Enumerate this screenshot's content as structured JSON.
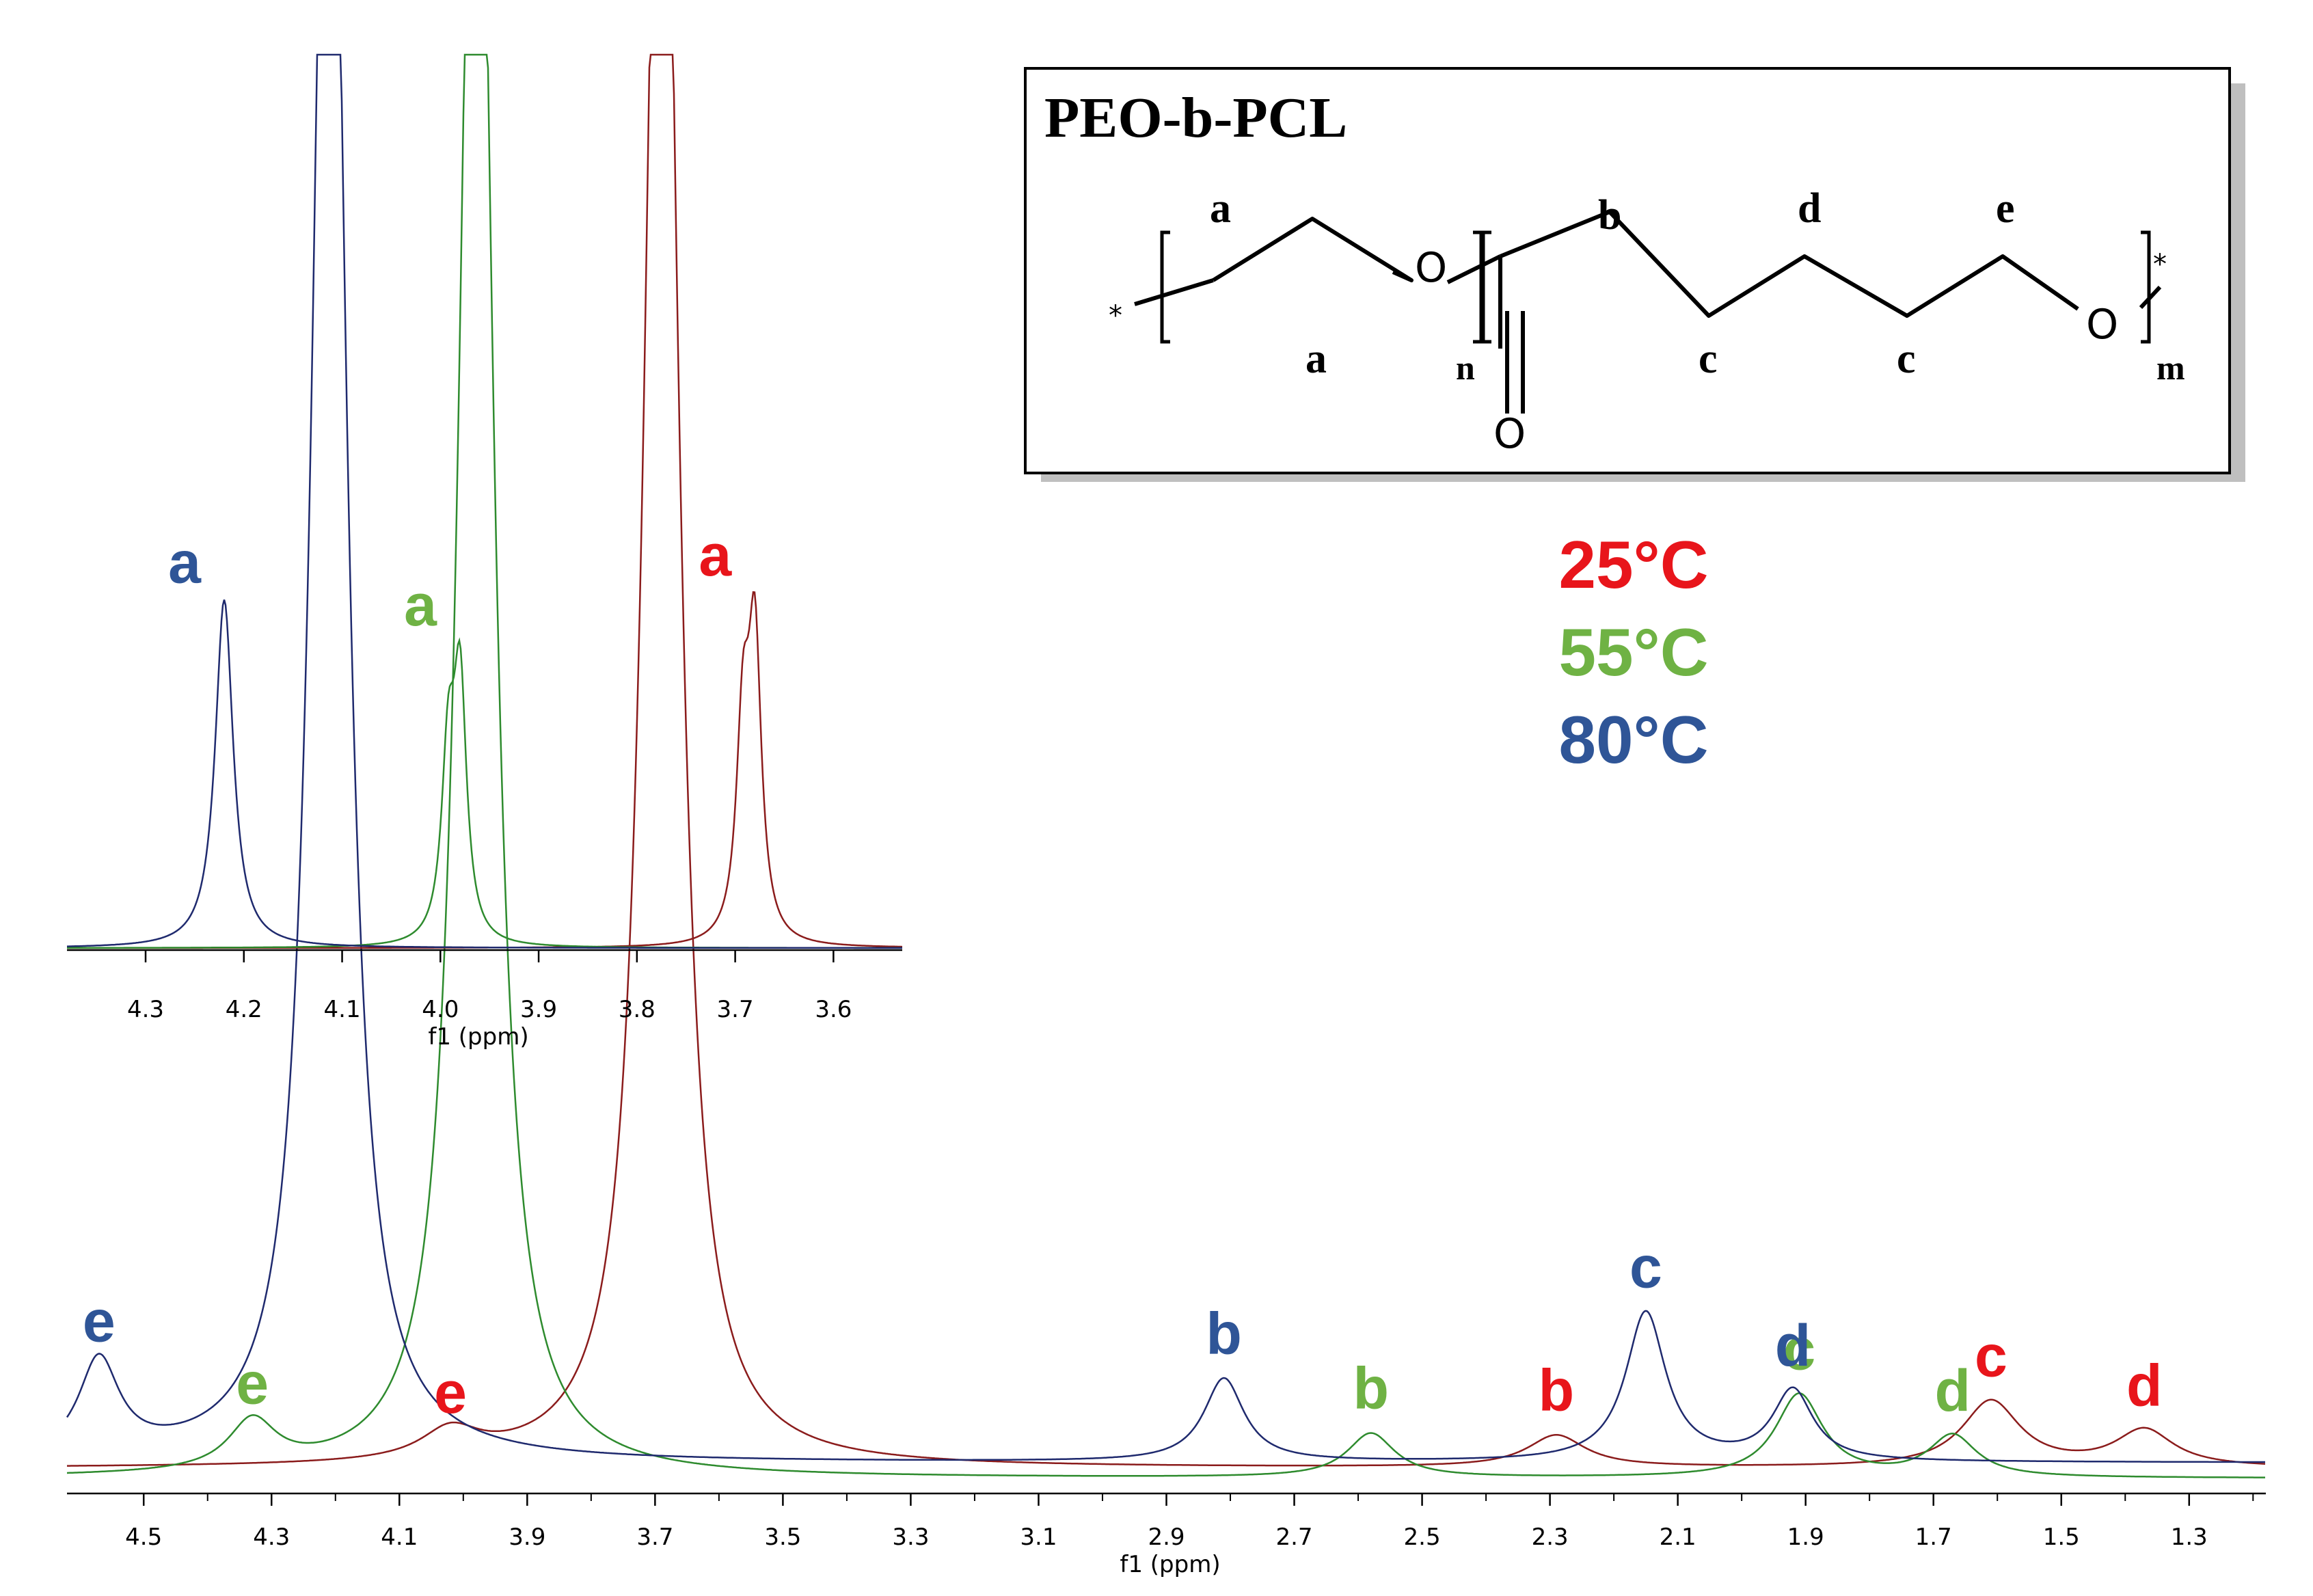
{
  "chart_data": [
    {
      "type": "line",
      "title": "",
      "xlabel": "f1 (ppm)",
      "ylabel": "",
      "xlim": [
        4.62,
        1.18
      ],
      "x_reversed": true,
      "ylim": [
        0,
        1
      ],
      "grid": false,
      "legend": "right, under the structure box",
      "xticks": [
        "4.5",
        "4.3",
        "4.1",
        "3.9",
        "3.7",
        "3.5",
        "3.3",
        "3.1",
        "2.9",
        "2.7",
        "2.5",
        "2.3",
        "2.1",
        "1.9",
        "1.7",
        "1.5",
        "1.3"
      ],
      "series": [
        {
          "name": "25°C",
          "color": "#8b1c1c",
          "peaks": [
            {
              "label": "e",
              "ppm": 4.02,
              "height": 0.12
            },
            {
              "label": "a",
              "ppm": 3.69,
              "height": 1.0,
              "truncated": true
            },
            {
              "label": "b",
              "ppm": 2.29,
              "height": 0.13
            },
            {
              "label": "c",
              "ppm": 1.61,
              "height": 0.27
            },
            {
              "label": "d",
              "ppm": 1.37,
              "height": 0.15
            }
          ]
        },
        {
          "name": "55°C",
          "color": "#2e8b2e",
          "peaks": [
            {
              "label": "e",
              "ppm": 4.33,
              "height": 0.2
            },
            {
              "label": "a",
              "ppm": 3.98,
              "height": 1.0,
              "truncated": true
            },
            {
              "label": "b",
              "ppm": 2.58,
              "height": 0.18
            },
            {
              "label": "c",
              "ppm": 1.91,
              "height": 0.34
            },
            {
              "label": "d",
              "ppm": 1.67,
              "height": 0.17
            }
          ]
        },
        {
          "name": "80°C",
          "color": "#1f2a6e",
          "peaks": [
            {
              "label": "e",
              "ppm": 4.57,
              "height": 0.39
            },
            {
              "label": "a",
              "ppm": 4.21,
              "height": 1.0,
              "truncated": true
            },
            {
              "label": "b",
              "ppm": 2.81,
              "height": 0.34
            },
            {
              "label": "c",
              "ppm": 2.15,
              "height": 0.61
            },
            {
              "label": "d",
              "ppm": 1.92,
              "height": 0.29
            }
          ]
        }
      ]
    },
    {
      "type": "line",
      "title": "",
      "xlabel": "f1 (ppm)",
      "xlim": [
        4.38,
        3.53
      ],
      "x_reversed": true,
      "ylim": [
        0,
        1
      ],
      "xticks": [
        "4.3",
        "4.2",
        "4.1",
        "4.0",
        "3.9",
        "3.8",
        "3.7",
        "3.6"
      ],
      "series": [
        {
          "name": "25°C",
          "color": "#8b1c1c",
          "peaks": [
            {
              "label": "a",
              "ppm": 3.68,
              "height": 1.0
            }
          ]
        },
        {
          "name": "55°C",
          "color": "#2e8b2e",
          "peaks": [
            {
              "label": "a",
              "ppm": 3.98,
              "height": 0.86
            }
          ]
        },
        {
          "name": "80°C",
          "color": "#1f2a6e",
          "peaks": [
            {
              "label": "a",
              "ppm": 4.22,
              "height": 0.98
            }
          ]
        }
      ]
    }
  ],
  "label_colors": {
    "25°C": "#e8151b",
    "55°C": "#6fb244",
    "80°C": "#2f5597"
  },
  "legend": {
    "items": [
      "25°C",
      "55°C",
      "80°C"
    ]
  },
  "structure": {
    "title": "PEO-b-PCL",
    "atom_o1": "O",
    "atom_o2": "O",
    "atom_o3": "O",
    "star_left": "*",
    "star_right": "*",
    "sub_n": "n",
    "sub_m": "m",
    "labels": {
      "a_top": "a",
      "a_bottom": "a",
      "b": "b",
      "c1": "c",
      "c2": "c",
      "d": "d",
      "e": "e"
    }
  }
}
